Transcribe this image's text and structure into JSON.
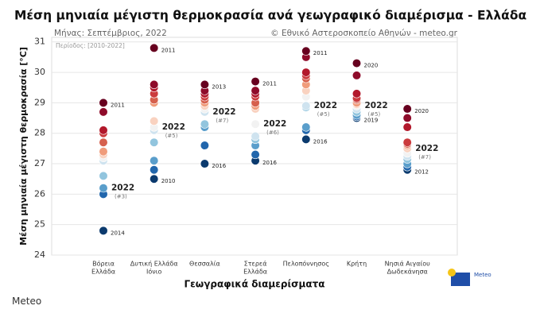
{
  "chart_data": {
    "type": "strip",
    "title": "Μέση μηνιαία μέγιστη θερμοκρασία ανά γεωγραφικό διαμέρισμα - Ελλάδα",
    "subtitle": "Μήνας: Σεπτέμβριος, 2022",
    "source": "© Εθνικό Αστεροσκοπείο Αθηνών - meteo.gr",
    "period": "Περίοδος: [2010-2022]",
    "ylabel": "Μέση μηνιαία μέγιστη θερμοκρασία [°C]",
    "xlabel": "Γεωγραφικά διαμερίσματα",
    "categories": [
      [
        "Βόρεια",
        "Ελλάδα"
      ],
      [
        "Δυτική Ελλάδα",
        "Ιόνιο"
      ],
      [
        "Θεσσαλία"
      ],
      [
        "Στερεά",
        "Ελλάδα"
      ],
      [
        "Πελοπόννησος"
      ],
      [
        "Κρήτη"
      ],
      [
        "Νησιά Αιγαίου",
        "Δωδεκάνησα"
      ]
    ],
    "values": [
      [
        29.0,
        28.7,
        28.1,
        28.0,
        27.7,
        27.4,
        27.3,
        27.2,
        27.1,
        26.6,
        26.2,
        26.0,
        24.8
      ],
      [
        30.8,
        29.6,
        29.5,
        29.3,
        29.1,
        29.0,
        28.4,
        28.2,
        28.1,
        27.7,
        27.1,
        26.8,
        26.5
      ],
      [
        29.6,
        29.4,
        29.3,
        29.2,
        29.1,
        29.0,
        28.9,
        28.8,
        28.7,
        28.3,
        28.2,
        27.6,
        27.0
      ],
      [
        29.7,
        29.4,
        29.3,
        29.2,
        29.0,
        28.9,
        28.8,
        28.3,
        27.9,
        27.8,
        27.6,
        27.3,
        27.1
      ],
      [
        30.7,
        30.5,
        30.0,
        29.9,
        29.8,
        29.6,
        29.4,
        29.2,
        28.9,
        28.85,
        28.2,
        28.1,
        27.8
      ],
      [
        30.3,
        29.9,
        29.3,
        29.15,
        29.1,
        29.0,
        28.95,
        28.9,
        28.8,
        28.7,
        28.6,
        28.55,
        28.5
      ],
      [
        28.8,
        28.5,
        28.2,
        27.7,
        27.65,
        27.6,
        27.5,
        27.35,
        27.25,
        27.15,
        27.0,
        26.9,
        26.8
      ]
    ],
    "point_labels": [
      [
        "2011",
        null,
        null,
        null,
        null,
        null,
        null,
        null,
        null,
        null,
        {
          "label": "2022",
          "rank": "(#3)"
        },
        null,
        "2014"
      ],
      [
        "2011",
        null,
        null,
        null,
        null,
        null,
        null,
        {
          "label": "2022",
          "rank": "(#5)"
        },
        null,
        null,
        null,
        null,
        "2010"
      ],
      [
        "2013",
        null,
        null,
        null,
        null,
        null,
        null,
        null,
        {
          "label": "2022",
          "rank": "(#7)"
        },
        null,
        null,
        null,
        "2016"
      ],
      [
        "2011",
        null,
        null,
        null,
        null,
        null,
        null,
        {
          "label": "2022",
          "rank": "(#6)"
        },
        null,
        null,
        null,
        null,
        "2016"
      ],
      [
        "2011",
        null,
        null,
        null,
        null,
        null,
        null,
        null,
        {
          "label": "2022",
          "rank": "(#5)"
        },
        null,
        null,
        null,
        "2016"
      ],
      [
        "2020",
        null,
        null,
        null,
        null,
        null,
        null,
        {
          "label": "2022",
          "rank": "(#5)"
        },
        null,
        null,
        null,
        null,
        "2019"
      ],
      [
        "2020",
        null,
        null,
        null,
        null,
        null,
        {
          "label": "2022",
          "rank": "(#7)"
        },
        null,
        null,
        null,
        null,
        null,
        "2012"
      ]
    ],
    "palette": [
      "#67001f",
      "#8e0b2a",
      "#b2182b",
      "#cb3b3d",
      "#d6604d",
      "#f09c7b",
      "#f9d2c0",
      "#f2f2f2",
      "#cfe3ef",
      "#92c5de",
      "#5a9ecb",
      "#2166ac",
      "#0b3a6e"
    ],
    "ylim": [
      24,
      31.15
    ],
    "yticks": [
      24,
      25,
      26,
      27,
      28,
      29,
      30,
      31
    ],
    "grid": true,
    "logo": "Meteo",
    "caption": "Meteo"
  }
}
